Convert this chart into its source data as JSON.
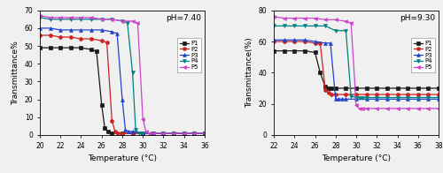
{
  "ph740": {
    "title": "pH=7.40",
    "xlabel": "Temperature (°C)",
    "ylabel": "Transmittance%",
    "xlim": [
      20,
      36
    ],
    "ylim": [
      0,
      70
    ],
    "yticks": [
      0,
      10,
      20,
      30,
      40,
      50,
      60,
      70
    ],
    "xticks": [
      20,
      22,
      24,
      26,
      28,
      30,
      32,
      34,
      36
    ],
    "series": {
      "P1": {
        "x": [
          20,
          21,
          22,
          23,
          24,
          25,
          25.5,
          26,
          26.3,
          26.6,
          27,
          28,
          29,
          30,
          31,
          32,
          33,
          34,
          35,
          36
        ],
        "y": [
          49,
          49,
          49,
          49,
          49,
          48,
          47,
          17,
          4,
          2,
          1,
          1,
          1,
          1,
          1,
          1,
          1,
          1,
          1,
          1
        ],
        "color": "#1a1a1a",
        "marker": "s",
        "linestyle": "-"
      },
      "P2": {
        "x": [
          20,
          21,
          22,
          23,
          24,
          25,
          26,
          26.5,
          27,
          27.3,
          27.6,
          28,
          29,
          30,
          31,
          32,
          33,
          34,
          35,
          36
        ],
        "y": [
          56,
          56,
          55,
          55,
          54,
          54,
          53,
          52,
          8,
          2,
          1,
          1,
          1,
          1,
          1,
          1,
          1,
          1,
          1,
          1
        ],
        "color": "#cc2222",
        "marker": "o",
        "linestyle": "-"
      },
      "P3": {
        "x": [
          20,
          21,
          22,
          23,
          24,
          25,
          26,
          27,
          27.5,
          28,
          28.3,
          28.6,
          29,
          30,
          31,
          32,
          33,
          34,
          35,
          36
        ],
        "y": [
          60,
          60,
          59,
          59,
          59,
          59,
          59,
          58,
          57,
          20,
          3,
          2,
          2,
          1,
          1,
          1,
          1,
          1,
          1,
          1
        ],
        "color": "#2244cc",
        "marker": "^",
        "linestyle": "-"
      },
      "P4": {
        "x": [
          20,
          21,
          22,
          23,
          24,
          25,
          26,
          27,
          28,
          28.5,
          29,
          29.3,
          29.6,
          30,
          31,
          32,
          33,
          34,
          35,
          36
        ],
        "y": [
          66,
          65,
          65,
          65,
          65,
          65,
          65,
          65,
          64,
          63,
          35,
          3,
          1,
          1,
          1,
          1,
          1,
          1,
          1,
          1
        ],
        "color": "#008080",
        "marker": "v",
        "linestyle": "-"
      },
      "P5": {
        "x": [
          20,
          21,
          22,
          23,
          24,
          25,
          26,
          27,
          28,
          29,
          29.5,
          30,
          30.3,
          30.6,
          31,
          32,
          33,
          34,
          35,
          36
        ],
        "y": [
          67,
          66,
          66,
          66,
          66,
          66,
          65,
          65,
          64,
          64,
          63,
          9,
          2,
          1,
          1,
          1,
          1,
          1,
          1,
          1
        ],
        "color": "#cc44cc",
        "marker": "<",
        "linestyle": "-"
      }
    }
  },
  "ph930": {
    "title": "pH=9.30",
    "xlabel": "Temperature (°C)",
    "ylabel": "Transmittance(%)",
    "xlim": [
      22,
      38
    ],
    "ylim": [
      0,
      80
    ],
    "yticks": [
      0,
      20,
      40,
      60,
      80
    ],
    "xticks": [
      22,
      24,
      26,
      28,
      30,
      32,
      34,
      36,
      38
    ],
    "series": {
      "P1": {
        "x": [
          22,
          23,
          24,
          25,
          26,
          26.5,
          27,
          27.3,
          27.6,
          28,
          29,
          30,
          31,
          32,
          33,
          34,
          35,
          36,
          37,
          38
        ],
        "y": [
          54,
          54,
          54,
          54,
          53,
          40,
          31,
          30,
          30,
          30,
          30,
          30,
          30,
          30,
          30,
          30,
          30,
          30,
          30,
          30
        ],
        "color": "#1a1a1a",
        "marker": "s",
        "linestyle": "-"
      },
      "P2": {
        "x": [
          22,
          23,
          24,
          25,
          26,
          26.5,
          27,
          27.3,
          27.6,
          28,
          29,
          30,
          31,
          32,
          33,
          34,
          35,
          36,
          37,
          38
        ],
        "y": [
          60,
          60,
          60,
          60,
          59,
          59,
          29,
          27,
          26,
          26,
          26,
          26,
          26,
          26,
          26,
          26,
          26,
          26,
          26,
          26
        ],
        "color": "#cc2222",
        "marker": "o",
        "linestyle": "-"
      },
      "P3": {
        "x": [
          22,
          23,
          24,
          25,
          26,
          27,
          27.5,
          28,
          28.3,
          28.6,
          29,
          30,
          31,
          32,
          33,
          34,
          35,
          36,
          37,
          38
        ],
        "y": [
          61,
          61,
          61,
          61,
          60,
          59,
          59,
          23,
          23,
          23,
          23,
          23,
          23,
          23,
          23,
          23,
          23,
          23,
          23,
          23
        ],
        "color": "#2244cc",
        "marker": "^",
        "linestyle": "-"
      },
      "P4": {
        "x": [
          22,
          23,
          24,
          25,
          26,
          27,
          28,
          29,
          29.5,
          30,
          30.3,
          30.6,
          31,
          32,
          33,
          34,
          35,
          36,
          37,
          38
        ],
        "y": [
          70,
          70,
          70,
          70,
          70,
          70,
          67,
          67,
          25,
          24,
          24,
          24,
          24,
          24,
          24,
          24,
          24,
          24,
          24,
          24
        ],
        "color": "#008080",
        "marker": "v",
        "linestyle": "-"
      },
      "P5": {
        "x": [
          22,
          23,
          24,
          25,
          26,
          27,
          28,
          29,
          29.5,
          30,
          30.3,
          30.6,
          31,
          32,
          33,
          34,
          35,
          36,
          37,
          38
        ],
        "y": [
          76,
          75,
          75,
          75,
          75,
          74,
          74,
          73,
          72,
          19,
          17,
          17,
          17,
          17,
          17,
          17,
          17,
          17,
          17,
          17
        ],
        "color": "#cc44cc",
        "marker": "<",
        "linestyle": "-"
      }
    }
  }
}
